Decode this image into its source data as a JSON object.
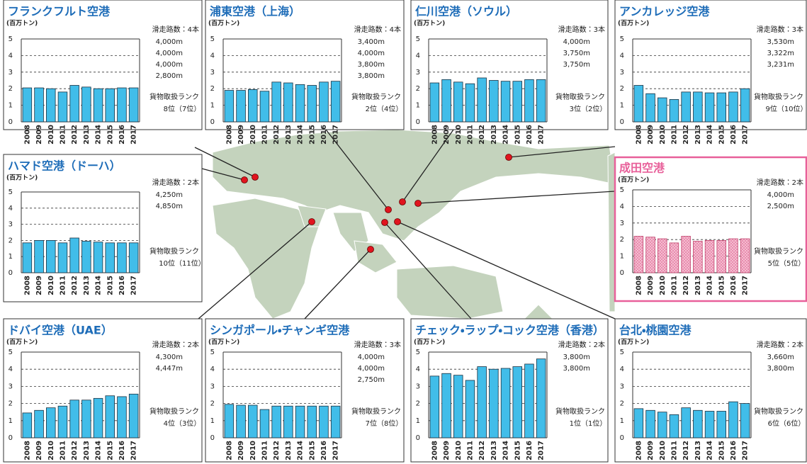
{
  "chart_data": [
    {
      "type": "bar",
      "title": "フランクフルト空港",
      "y_label": "(百万トン)",
      "categories": [
        "2008",
        "2009",
        "2010",
        "2011",
        "2012",
        "2013",
        "2014",
        "2015",
        "2016",
        "2017"
      ],
      "values": [
        2.05,
        2.05,
        2.0,
        1.8,
        2.2,
        2.1,
        2.0,
        2.0,
        2.05,
        2.05
      ],
      "ylim": [
        0,
        5
      ],
      "yticks": [
        0,
        1,
        2,
        3,
        4,
        5
      ],
      "color": "#41bde9",
      "runways": "滑走路数：4本",
      "runway_lengths": [
        "4,000m",
        "4,000m",
        "4,000m",
        "2,800m"
      ],
      "rank_label": "貨物取扱ランク",
      "rank": "8位（7位）"
    },
    {
      "type": "bar",
      "title": "浦東空港（上海）",
      "y_label": "(百万トン)",
      "categories": [
        "2008",
        "2009",
        "2010",
        "2011",
        "2012",
        "2013",
        "2014",
        "2015",
        "2016",
        "2017"
      ],
      "values": [
        1.9,
        1.9,
        1.95,
        1.85,
        2.4,
        2.35,
        2.25,
        2.2,
        2.4,
        2.45
      ],
      "ylim": [
        0,
        5
      ],
      "yticks": [
        0,
        1,
        2,
        3,
        4,
        5
      ],
      "color": "#41bde9",
      "runways": "滑走路数：4本",
      "runway_lengths": [
        "3,400m",
        "4,000m",
        "3,800m",
        "3,800m"
      ],
      "rank_label": "貨物取扱ランク",
      "rank": "2位（4位）"
    },
    {
      "type": "bar",
      "title": "仁川空港（ソウル）",
      "y_label": "(百万トン)",
      "categories": [
        "2008",
        "2009",
        "2010",
        "2011",
        "2012",
        "2013",
        "2014",
        "2015",
        "2016",
        "2017"
      ],
      "values": [
        2.35,
        2.55,
        2.4,
        2.3,
        2.65,
        2.5,
        2.45,
        2.45,
        2.55,
        2.55
      ],
      "ylim": [
        0,
        5
      ],
      "yticks": [
        0,
        1,
        2,
        3,
        4,
        5
      ],
      "color": "#41bde9",
      "runways": "滑走路数：3本",
      "runway_lengths": [
        "4,000m",
        "3,750m",
        "3,750m"
      ],
      "rank_label": "貨物取扱ランク",
      "rank": "3位（2位）"
    },
    {
      "type": "bar",
      "title": "アンカレッジ空港",
      "y_label": "(百万トン)",
      "categories": [
        "2008",
        "2009",
        "2010",
        "2011",
        "2012",
        "2013",
        "2014",
        "2015",
        "2016",
        "2017"
      ],
      "values": [
        2.2,
        1.7,
        1.45,
        1.35,
        1.8,
        1.8,
        1.75,
        1.75,
        1.8,
        2.0
      ],
      "ylim": [
        0,
        5
      ],
      "yticks": [
        0,
        1,
        2,
        3,
        4,
        5
      ],
      "color": "#41bde9",
      "runways": "滑走路数：3本",
      "runway_lengths": [
        "3,530m",
        "3,322m",
        "3,231m"
      ],
      "rank_label": "貨物取扱ランク",
      "rank": "9位（10位）"
    },
    {
      "type": "bar",
      "title": "ハマド空港（ドーハ）",
      "y_label": "(百万トン)",
      "categories": [
        "2008",
        "2009",
        "2010",
        "2011",
        "2012",
        "2013",
        "2014",
        "2015",
        "2016",
        "2017"
      ],
      "values": [
        1.85,
        2.0,
        2.0,
        1.85,
        2.15,
        1.95,
        1.9,
        1.85,
        1.85,
        1.85
      ],
      "ylim": [
        0,
        5
      ],
      "yticks": [
        0,
        1,
        2,
        3,
        4,
        5
      ],
      "color": "#41bde9",
      "runways": "滑走路数：2本",
      "runway_lengths": [
        "4,250m",
        "4,850m"
      ],
      "rank_label": "貨物取扱ランク",
      "rank": "10位（11位）"
    },
    {
      "type": "bar",
      "title": "成田空港",
      "y_label": "(百万トン)",
      "categories": [
        "2008",
        "2009",
        "2010",
        "2011",
        "2012",
        "2013",
        "2014",
        "2015",
        "2016",
        "2017"
      ],
      "values": [
        2.2,
        2.15,
        2.05,
        1.8,
        2.2,
        1.9,
        1.95,
        1.95,
        2.05,
        2.05
      ],
      "ylim": [
        0,
        5
      ],
      "yticks": [
        0,
        1,
        2,
        3,
        4,
        5
      ],
      "color": "#f5b5cc",
      "hatch": true,
      "runways": "滑走路数：2本",
      "runway_lengths": [
        "4,000m",
        "2,500m"
      ],
      "rank_label": "貨物取扱ランク",
      "rank": "5位（5位）"
    },
    {
      "type": "bar",
      "title": "ドバイ空港（UAE）",
      "y_label": "(百万トン)",
      "categories": [
        "2008",
        "2009",
        "2010",
        "2011",
        "2012",
        "2013",
        "2014",
        "2015",
        "2016",
        "2017"
      ],
      "values": [
        1.45,
        1.6,
        1.75,
        1.85,
        2.2,
        2.2,
        2.3,
        2.45,
        2.4,
        2.55
      ],
      "ylim": [
        0,
        5
      ],
      "yticks": [
        0,
        1,
        2,
        3,
        4,
        5
      ],
      "color": "#41bde9",
      "runways": "滑走路数：2本",
      "runway_lengths": [
        "4,300m",
        "4,447m"
      ],
      "rank_label": "貨物取扱ランク",
      "rank": "4位（3位）"
    },
    {
      "type": "bar",
      "title": "シンガポール・チャンギ空港",
      "y_label": "(百万トン)",
      "categories": [
        "2008",
        "2009",
        "2010",
        "2011",
        "2012",
        "2013",
        "2014",
        "2015",
        "2016",
        "2017"
      ],
      "values": [
        1.95,
        1.9,
        1.9,
        1.65,
        1.85,
        1.85,
        1.85,
        1.85,
        1.85,
        1.85
      ],
      "ylim": [
        0,
        5
      ],
      "yticks": [
        0,
        1,
        2,
        3,
        4,
        5
      ],
      "color": "#41bde9",
      "runways": "滑走路数：3本",
      "runway_lengths": [
        "4,000m",
        "4,000m",
        "2,750m"
      ],
      "rank_label": "貨物取扱ランク",
      "rank": "7位（8位）"
    },
    {
      "type": "bar",
      "title": "チェック・ラップ・コック空港（香港）",
      "y_label": "(百万トン)",
      "categories": [
        "2008",
        "2009",
        "2010",
        "2011",
        "2012",
        "2013",
        "2014",
        "2015",
        "2016",
        "2017"
      ],
      "values": [
        3.6,
        3.75,
        3.65,
        3.35,
        4.15,
        4.0,
        4.05,
        4.15,
        4.3,
        4.6
      ],
      "ylim": [
        0,
        5
      ],
      "yticks": [
        0,
        1,
        2,
        3,
        4,
        5
      ],
      "color": "#41bde9",
      "runways": "滑走路数：2本",
      "runway_lengths": [
        "3,800m",
        "3,800m"
      ],
      "rank_label": "貨物取扱ランク",
      "rank": "1位（1位）"
    },
    {
      "type": "bar",
      "title": "台北・桃園空港",
      "y_label": "(百万トン)",
      "categories": [
        "2008",
        "2009",
        "2010",
        "2011",
        "2012",
        "2013",
        "2014",
        "2015",
        "2016",
        "2017"
      ],
      "values": [
        1.7,
        1.6,
        1.5,
        1.35,
        1.75,
        1.6,
        1.55,
        1.55,
        2.1,
        2.0
      ],
      "ylim": [
        0,
        5
      ],
      "yticks": [
        0,
        1,
        2,
        3,
        4,
        5
      ],
      "color": "#41bde9",
      "runways": "滑走路数：2本",
      "runway_lengths": [
        "3,660m",
        "3,800m"
      ],
      "rank_label": "貨物取扱ランク",
      "rank": "6位（6位）"
    }
  ]
}
